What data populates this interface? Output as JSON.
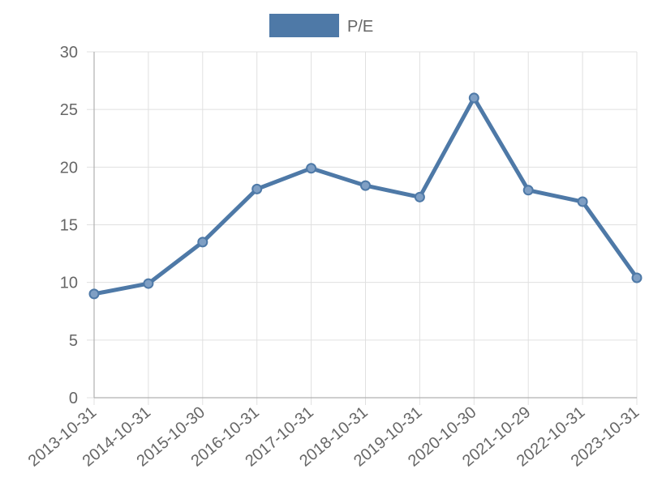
{
  "chart_data": {
    "type": "line",
    "title": "",
    "xlabel": "",
    "ylabel": "",
    "categories": [
      "2013-10-31",
      "2014-10-31",
      "2015-10-30",
      "2016-10-31",
      "2017-10-31",
      "2018-10-31",
      "2019-10-31",
      "2020-10-30",
      "2021-10-29",
      "2022-10-31",
      "2023-10-31"
    ],
    "series": [
      {
        "name": "P/E",
        "values": [
          9.0,
          9.9,
          13.5,
          18.1,
          19.9,
          18.4,
          17.4,
          26.0,
          18.0,
          17.0,
          10.4
        ]
      }
    ],
    "ylim": [
      0,
      30
    ],
    "yticks": [
      0,
      5,
      10,
      15,
      20,
      25,
      30
    ],
    "grid": true,
    "legend_position": "top",
    "colors": {
      "series": "#4e79a7",
      "point_fill": "#7f9fc4",
      "grid": "#e0e0e0",
      "axis": "#b0b0b0",
      "text": "#666666"
    }
  }
}
